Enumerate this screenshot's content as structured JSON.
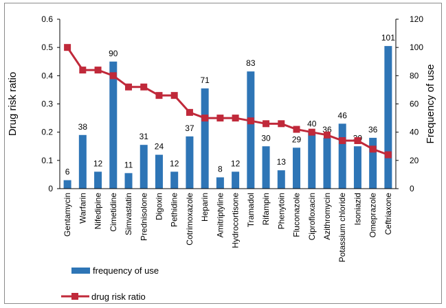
{
  "chart_data": {
    "type": "bar",
    "categories": [
      "Gentamycin",
      "Warfarin",
      "Nifedipine",
      "Cimetidine",
      "Simvastatin",
      "Prednisolone",
      "Digoxin",
      "Pethidine",
      "Cotrimoxazole",
      "Heparin",
      "Amitriptyline",
      "Hydrocortisone",
      "Tramadol",
      "Rifampin",
      "Phenytoin",
      "Fluconazole",
      "Ciprofloxacin",
      "Azithromycin",
      "Potassium chloride",
      "Isoniazid",
      "Omeprazole",
      "Ceftriaxone"
    ],
    "series": [
      {
        "name": "frequency of use",
        "type": "bar",
        "axis": "right",
        "color": "#2e75b6",
        "values": [
          6,
          38,
          12,
          90,
          11,
          31,
          24,
          12,
          37,
          71,
          8,
          12,
          83,
          30,
          13,
          29,
          40,
          36,
          46,
          30,
          36,
          101
        ],
        "labels": [
          "6",
          "38",
          "12",
          "90",
          "11",
          "31",
          "24",
          "12",
          "37",
          "71",
          "8",
          "12",
          "83",
          "30",
          "13",
          "29",
          "40",
          "36",
          "46",
          "30",
          "36",
          "101"
        ]
      },
      {
        "name": "drug risk ratio",
        "type": "line",
        "axis": "left",
        "color": "#c0293a",
        "values": [
          0.5,
          0.42,
          0.42,
          0.4,
          0.36,
          0.36,
          0.33,
          0.33,
          0.27,
          0.25,
          0.25,
          0.25,
          0.24,
          0.23,
          0.23,
          0.21,
          0.2,
          0.19,
          0.17,
          0.17,
          0.14,
          0.12
        ]
      }
    ],
    "y_left": {
      "label": "Drug risk ratio",
      "ylim": [
        0,
        0.6
      ],
      "ticks": [
        "0",
        "0.1",
        "0.2",
        "0.3",
        "0.4",
        "0.5",
        "0.6"
      ]
    },
    "y_right": {
      "label": "Frequency of use",
      "ylim": [
        0,
        120
      ],
      "ticks": [
        "0",
        "20",
        "40",
        "60",
        "80",
        "100",
        "120"
      ]
    },
    "grid": false,
    "legend": {
      "placement": "bottom-left"
    }
  }
}
